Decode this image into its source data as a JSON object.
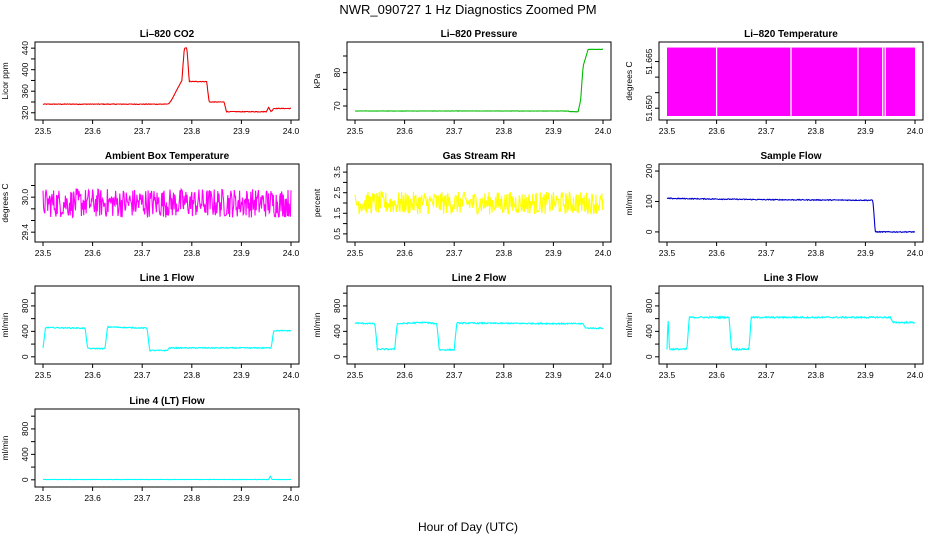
{
  "title": "NWR_090727  1 Hz Diagnostics Zoomed PM",
  "xlabel": "Hour of Day (UTC)",
  "chart_data": [
    {
      "type": "line",
      "title": "Li–820 CO2",
      "ylabel": "Licor ppm",
      "color": "#ee0000",
      "xlim": [
        23.5,
        24.0
      ],
      "ylim": [
        314,
        444
      ],
      "xticks": [
        "23.5",
        "23.6",
        "23.7",
        "23.8",
        "23.9",
        "24.0"
      ],
      "yticks": [
        320,
        340,
        360,
        380,
        400,
        420,
        440
      ],
      "ytick_labels": [
        "320",
        "",
        "360",
        "",
        "400",
        "",
        "440"
      ],
      "noise": 0.6,
      "series": [
        {
          "x": [
            23.5,
            23.75,
            23.755,
            23.76,
            23.78,
            23.785,
            23.79,
            23.795,
            23.83,
            23.835,
            23.865,
            23.87,
            23.95,
            23.955,
            23.96,
            23.965,
            24.0
          ],
          "y": [
            336,
            336,
            338,
            345,
            380,
            440,
            440,
            378,
            378,
            340,
            340,
            322,
            322,
            330,
            322,
            328,
            328
          ]
        }
      ]
    },
    {
      "type": "line",
      "title": "Li–820 Pressure",
      "ylabel": "kPa",
      "color": "#00bb00",
      "xlim": [
        23.5,
        24.0
      ],
      "ylim": [
        67,
        88
      ],
      "xticks": [
        "23.5",
        "23.6",
        "23.7",
        "23.8",
        "23.9",
        "24.0"
      ],
      "yticks": [
        70,
        75,
        80,
        85
      ],
      "ytick_labels": [
        "70",
        "",
        "80",
        ""
      ],
      "noise": 0.05,
      "series": [
        {
          "x": [
            23.5,
            23.93,
            23.935,
            23.95,
            23.955,
            23.96,
            23.97,
            24.0
          ],
          "y": [
            68.5,
            68.5,
            68.3,
            68.3,
            72,
            82,
            87,
            87
          ]
        }
      ]
    },
    {
      "type": "area",
      "title": "Li–820 Temperature",
      "ylabel": "degrees C",
      "color": "#ff00ff",
      "xlim": [
        23.5,
        24.0
      ],
      "ylim": [
        51.6475,
        51.67
      ],
      "xticks": [
        "23.5",
        "23.6",
        "23.7",
        "23.8",
        "23.9",
        "24.0"
      ],
      "yticks": [
        51.65,
        51.655,
        51.66,
        51.665
      ],
      "ytick_labels": [
        "51.650",
        "",
        "",
        "51.665"
      ],
      "gaps": [
        23.6,
        23.75,
        23.885,
        23.935,
        23.94
      ],
      "series": [
        {
          "x": [
            23.5,
            24.0
          ],
          "y": [
            51.6475,
            51.6695
          ]
        }
      ]
    },
    {
      "type": "line",
      "title": "Ambient Box Temperature",
      "ylabel": "degrees C",
      "color": "#ff00ff",
      "xlim": [
        23.5,
        24.0
      ],
      "ylim": [
        29.3,
        30.5
      ],
      "xticks": [
        "23.5",
        "23.6",
        "23.7",
        "23.8",
        "23.9",
        "24.0"
      ],
      "yticks": [
        29.4,
        29.6,
        29.8,
        30.0,
        30.2
      ],
      "ytick_labels": [
        "29.4",
        "",
        "",
        "30.0",
        ""
      ],
      "noise": 0.25,
      "series": [
        {
          "x": [
            23.5,
            24.0
          ],
          "y": [
            29.9,
            29.9
          ]
        }
      ]
    },
    {
      "type": "line",
      "title": "Gas Stream RH",
      "ylabel": "percent",
      "color": "#ffff00",
      "xlim": [
        23.5,
        24.0
      ],
      "ylim": [
        0.3,
        3.7
      ],
      "xticks": [
        "23.5",
        "23.6",
        "23.7",
        "23.8",
        "23.9",
        "24.0"
      ],
      "yticks": [
        0.5,
        1.0,
        1.5,
        2.0,
        2.5,
        3.0,
        3.5
      ],
      "ytick_labels": [
        "0.5",
        "",
        "1.5",
        "",
        "2.5",
        "",
        "3.5"
      ],
      "noise": 0.55,
      "series": [
        {
          "x": [
            23.5,
            24.0
          ],
          "y": [
            2.0,
            2.0
          ]
        }
      ]
    },
    {
      "type": "line",
      "title": "Sample Flow",
      "ylabel": "ml/min",
      "color": "#0000cc",
      "xlim": [
        23.5,
        24.0
      ],
      "ylim": [
        -20,
        210
      ],
      "xticks": [
        "23.5",
        "23.6",
        "23.7",
        "23.8",
        "23.9",
        "24.0"
      ],
      "yticks": [
        0,
        100,
        200
      ],
      "ytick_labels": [
        "0",
        "100",
        "200"
      ],
      "noise": 1.5,
      "series": [
        {
          "x": [
            23.5,
            23.6,
            23.7,
            23.915,
            23.92,
            24.0
          ],
          "y": [
            110,
            108,
            106,
            104,
            0,
            0
          ]
        }
      ]
    },
    {
      "type": "line",
      "title": "Line 1 Flow",
      "ylabel": "ml/min",
      "color": "#00ffff",
      "xlim": [
        23.5,
        24.0
      ],
      "ylim": [
        -50,
        1050
      ],
      "xticks": [
        "23.5",
        "23.6",
        "23.7",
        "23.8",
        "23.9",
        "24.0"
      ],
      "yticks": [
        0,
        200,
        400,
        600,
        800,
        1000
      ],
      "ytick_labels": [
        "0",
        "",
        "400",
        "",
        "800",
        ""
      ],
      "noise": 8,
      "series": [
        {
          "x": [
            23.5,
            23.505,
            23.585,
            23.59,
            23.625,
            23.63,
            23.71,
            23.715,
            23.75,
            23.755,
            23.96,
            23.965,
            24.0
          ],
          "y": [
            130,
            460,
            450,
            130,
            130,
            470,
            450,
            100,
            100,
            140,
            140,
            410,
            410
          ]
        }
      ]
    },
    {
      "type": "line",
      "title": "Line 2 Flow",
      "ylabel": "ml/min",
      "color": "#00ffff",
      "xlim": [
        23.5,
        24.0
      ],
      "ylim": [
        -50,
        1050
      ],
      "xticks": [
        "23.5",
        "23.6",
        "23.7",
        "23.8",
        "23.9",
        "24.0"
      ],
      "yticks": [
        0,
        200,
        400,
        600,
        800,
        1000
      ],
      "ytick_labels": [
        "0",
        "",
        "400",
        "",
        "800",
        ""
      ],
      "noise": 10,
      "series": [
        {
          "x": [
            23.5,
            23.54,
            23.545,
            23.58,
            23.585,
            23.64,
            23.665,
            23.67,
            23.7,
            23.705,
            23.96,
            23.965,
            24.0
          ],
          "y": [
            530,
            520,
            120,
            120,
            520,
            540,
            520,
            110,
            110,
            530,
            520,
            450,
            450
          ]
        }
      ]
    },
    {
      "type": "line",
      "title": "Line 3 Flow",
      "ylabel": "ml/min",
      "color": "#00ffff",
      "xlim": [
        23.5,
        24.0
      ],
      "ylim": [
        -50,
        1050
      ],
      "xticks": [
        "23.5",
        "23.6",
        "23.7",
        "23.8",
        "23.9",
        "24.0"
      ],
      "yticks": [
        0,
        200,
        400,
        600,
        800,
        1000
      ],
      "ytick_labels": [
        "0",
        "",
        "400",
        "",
        "800",
        ""
      ],
      "noise": 12,
      "series": [
        {
          "x": [
            23.5,
            23.502,
            23.505,
            23.54,
            23.545,
            23.625,
            23.63,
            23.665,
            23.67,
            23.95,
            23.955,
            24.0
          ],
          "y": [
            120,
            620,
            120,
            120,
            620,
            620,
            120,
            120,
            620,
            620,
            540,
            540
          ]
        }
      ]
    },
    {
      "type": "line",
      "title": "Line 4 (LT) Flow",
      "ylabel": "ml/min",
      "color": "#00ffff",
      "xlim": [
        23.5,
        24.0
      ],
      "ylim": [
        -50,
        1050
      ],
      "xticks": [
        "23.5",
        "23.6",
        "23.7",
        "23.8",
        "23.9",
        "24.0"
      ],
      "yticks": [
        0,
        200,
        400,
        600,
        800,
        1000
      ],
      "ytick_labels": [
        "0",
        "",
        "400",
        "",
        "800",
        ""
      ],
      "noise": 3,
      "series": [
        {
          "x": [
            23.5,
            23.955,
            23.958,
            23.962,
            24.0
          ],
          "y": [
            5,
            5,
            60,
            5,
            5
          ]
        }
      ]
    }
  ]
}
